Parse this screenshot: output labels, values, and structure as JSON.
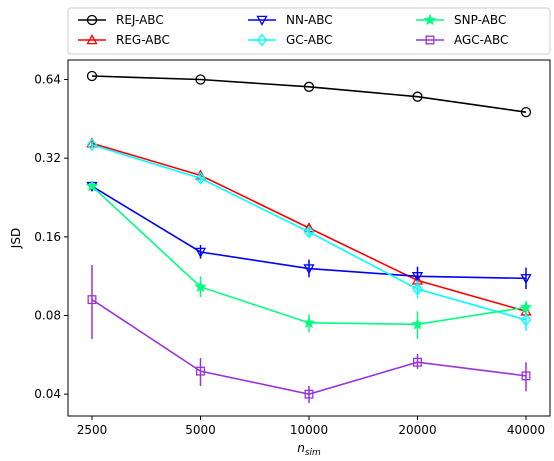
{
  "chart_data": {
    "type": "line",
    "xlabel_main": "n",
    "xlabel_sub": "sim",
    "ylabel": "JSD",
    "x": [
      2500,
      5000,
      10000,
      20000,
      40000
    ],
    "x_tick_labels": [
      "2500",
      "5000",
      "10000",
      "20000",
      "40000"
    ],
    "y_scale": "log2",
    "y_ticks": [
      0.04,
      0.08,
      0.16,
      0.32,
      0.64
    ],
    "y_tick_labels": [
      "0.04",
      "0.08",
      "0.16",
      "0.32",
      "0.64"
    ],
    "ylim": [
      0.033,
      0.76
    ],
    "grid": false,
    "legend_position": "top",
    "series": [
      {
        "name": "REJ-ABC",
        "color": "#000000",
        "marker": "circle",
        "values": [
          0.66,
          0.64,
          0.6,
          0.55,
          0.48
        ],
        "err_low": [
          0.66,
          0.64,
          0.6,
          0.55,
          0.48
        ],
        "err_high": [
          0.66,
          0.64,
          0.6,
          0.55,
          0.48
        ]
      },
      {
        "name": "REG-ABC",
        "color": "#ff0000",
        "marker": "triangle-up",
        "values": [
          0.365,
          0.275,
          0.173,
          0.109,
          0.083
        ],
        "err_low": [
          0.355,
          0.267,
          0.165,
          0.103,
          0.08
        ],
        "err_high": [
          0.375,
          0.283,
          0.18,
          0.116,
          0.087
        ]
      },
      {
        "name": "NN-ABC",
        "color": "#0000ff",
        "marker": "triangle-down",
        "values": [
          0.25,
          0.14,
          0.121,
          0.113,
          0.111
        ],
        "err_low": [
          0.245,
          0.132,
          0.112,
          0.104,
          0.101
        ],
        "err_high": [
          0.256,
          0.149,
          0.131,
          0.123,
          0.122
        ]
      },
      {
        "name": "GC-ABC",
        "color": "#00ffff",
        "marker": "diamond",
        "values": [
          0.36,
          0.268,
          0.167,
          0.101,
          0.077
        ],
        "err_low": [
          0.352,
          0.26,
          0.16,
          0.093,
          0.07
        ],
        "err_high": [
          0.368,
          0.276,
          0.174,
          0.109,
          0.084
        ]
      },
      {
        "name": "SNP-ABC",
        "color": "#00ff7f",
        "marker": "star",
        "values": [
          0.25,
          0.103,
          0.075,
          0.074,
          0.086
        ],
        "err_low": [
          0.247,
          0.094,
          0.069,
          0.065,
          0.081
        ],
        "err_high": [
          0.253,
          0.113,
          0.081,
          0.083,
          0.091
        ]
      },
      {
        "name": "AGC-ABC",
        "color": "#9933dd",
        "marker": "square",
        "values": [
          0.092,
          0.049,
          0.04,
          0.053,
          0.047
        ],
        "err_low": [
          0.065,
          0.043,
          0.037,
          0.05,
          0.041
        ],
        "err_high": [
          0.125,
          0.055,
          0.043,
          0.057,
          0.053
        ]
      }
    ]
  }
}
